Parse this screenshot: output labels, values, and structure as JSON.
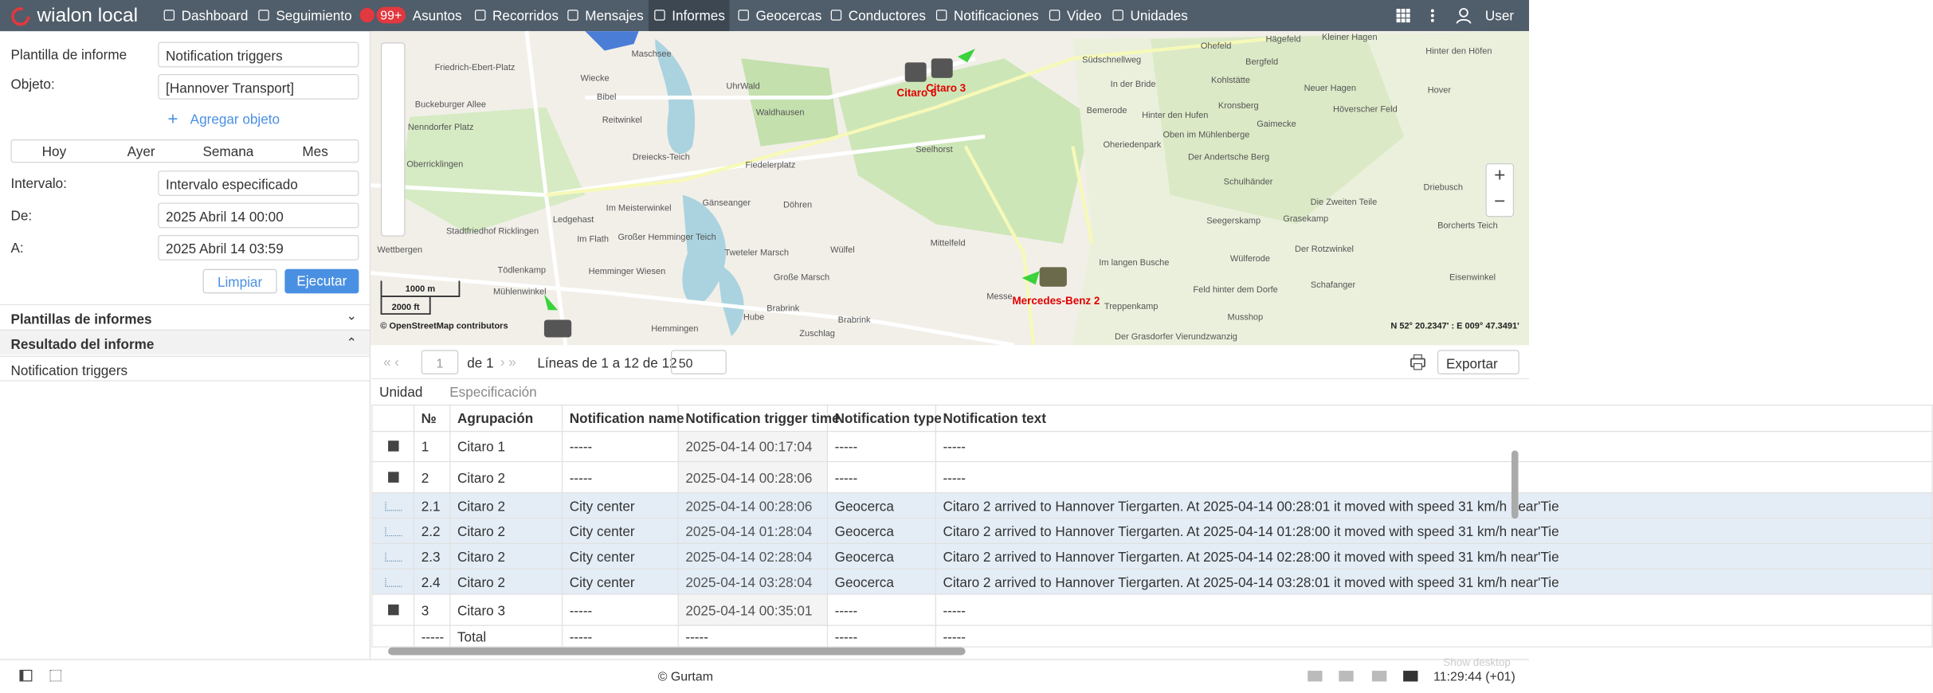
{
  "header": {
    "logo": "wialon local",
    "nav": [
      "Dashboard",
      "Seguimiento",
      "Asuntos",
      "Recorridos",
      "Mensajes",
      "Informes",
      "Geocercas",
      "Conductores",
      "Notificaciones",
      "Video",
      "Unidades"
    ],
    "badge": "99+",
    "user": "User"
  },
  "left_panel": {
    "template": {
      "label": "Plantilla de informe",
      "value": "Notification triggers"
    },
    "object": {
      "label": "Objeto:",
      "value": "[Hannover Transport]"
    },
    "add_object": "Agregar objeto",
    "periods": [
      "Hoy",
      "Ayer",
      "Semana",
      "Mes"
    ],
    "interval": {
      "label": "Intervalo:",
      "value": "Intervalo especificado"
    },
    "from": {
      "label": "De:",
      "value": "2025 Abril 14 00:00"
    },
    "to": {
      "label": "A:",
      "value": "2025 Abril 14 03:59"
    },
    "buttons": [
      "Limpiar",
      "Ejecutar"
    ],
    "sections": [
      "Plantillas de informes",
      "Resultado del informe"
    ],
    "result_item": "Notification triggers"
  },
  "map": {
    "labels": [
      "Friedrich-Ebert-Platz",
      "Wiecke",
      "Maschsee",
      "Bibel",
      "Buckeburger Allee",
      "Nenndorfer Platz",
      "Reitwinkel",
      "UhrWald",
      "Waldhausen",
      "Oberricklingen",
      "Dreiecks-Teich",
      "Fiedelerplatz",
      "Seelhorst",
      "Im Meisterwinkel",
      "Gänseanger",
      "Döhren",
      "Ledgehast",
      "Stadtfriedhof Ricklingen",
      "Im Flath",
      "Großer Hemminger Teich",
      "Wettbergen",
      "Tweteler Marsch",
      "Wülfel",
      "Mittelfeld",
      "Tödlenkamp",
      "Hemminger Wiesen",
      "Große Marsch",
      "Mühlenwinkel",
      "Brabrink",
      "Hube",
      "Brabrink",
      "Zuschlag",
      "Hemmingen",
      "Südschnellweg",
      "Ohefeld",
      "Hägefeld",
      "Kleiner Hagen",
      "Hinter den Höfen",
      "Bergfeld",
      "In der Bride",
      "Kohlstätte",
      "Neuer Hagen",
      "Hover",
      "Bemerode",
      "Hinter den Hufen",
      "Kronsberg",
      "Höverscher Feld",
      "Gaimecke",
      "Oben im Mühlenberge",
      "Oheriedenpark",
      "Der Andertsche Berg",
      "Schulhänder",
      "Driebusch",
      "Die Zweiten Teile",
      "Seegerskamp",
      "Grasekamp",
      "Borcherts Teich",
      "Der Rotzwinkel",
      "Im langen Busche",
      "Wülferode",
      "Eisenwinkel",
      "Feld hinter dem Dorfe",
      "Schafanger",
      "Treppenkamp",
      "Musshop",
      "Der Grasdorfer Vierundzwanzig",
      "Messe"
    ],
    "units": [
      "Citaro 6",
      "Citaro 3",
      "Mercedes-Benz 2"
    ],
    "scale": [
      "1000 m",
      "2000 ft"
    ],
    "attribution": "© OpenStreetMap contributors",
    "coords": "N 52° 20.2347' : E 009° 47.3491'"
  },
  "report": {
    "page": "1",
    "of": "de 1",
    "lines": "Líneas de 1 a 12 de 12",
    "per_page": "50",
    "export": "Exportar",
    "tabs": [
      "Unidad",
      "Especificación"
    ],
    "columns": [
      "№",
      "Agrupación",
      "Notification name",
      "Notification trigger time",
      "Notification type",
      "Notification text"
    ],
    "rows": [
      [
        "1",
        "Citaro 1",
        "-----",
        "2025-04-14 00:17:04",
        "-----",
        "-----"
      ],
      [
        "2",
        "Citaro 2",
        "-----",
        "2025-04-14 00:28:06",
        "-----",
        "-----"
      ],
      [
        "2.1",
        "Citaro 2",
        "City center",
        "2025-04-14 00:28:06",
        "Geocerca",
        "Citaro 2 arrived to Hannover Tiergarten. At 2025-04-14 00:28:01 it moved with speed 31 km/h near'Tie"
      ],
      [
        "2.2",
        "Citaro 2",
        "City center",
        "2025-04-14 01:28:04",
        "Geocerca",
        "Citaro 2 arrived to Hannover Tiergarten. At 2025-04-14 01:28:00 it moved with speed 31 km/h near'Tie"
      ],
      [
        "2.3",
        "Citaro 2",
        "City center",
        "2025-04-14 02:28:04",
        "Geocerca",
        "Citaro 2 arrived to Hannover Tiergarten. At 2025-04-14 02:28:00 it moved with speed 31 km/h near'Tie"
      ],
      [
        "2.4",
        "Citaro 2",
        "City center",
        "2025-04-14 03:28:04",
        "Geocerca",
        "Citaro 2 arrived to Hannover Tiergarten. At 2025-04-14 03:28:01 it moved with speed 31 km/h near'Tie"
      ],
      [
        "3",
        "Citaro 3",
        "-----",
        "2025-04-14 00:35:01",
        "-----",
        "-----"
      ]
    ],
    "total": [
      "-----",
      "Total",
      "-----",
      "-----",
      "-----",
      "-----"
    ]
  },
  "footer": {
    "copyright": "© Gurtam",
    "time": "11:29:44 (+01)",
    "show_desktop": "Show desktop"
  }
}
